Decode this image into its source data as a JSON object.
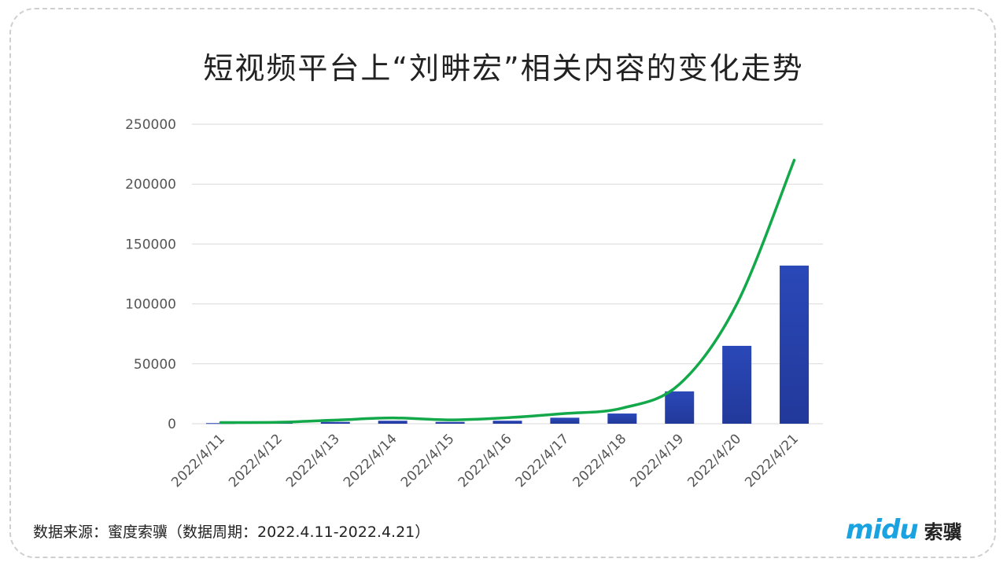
{
  "title": "短视频平台上“刘畊宏”相关内容的变化走势",
  "footer": {
    "source": "数据来源：蜜度索骥（数据周期：2022.4.11-2022.4.21）",
    "logo_mark": "midu",
    "logo_cn": "索骥"
  },
  "colors": {
    "bar": "#22399a",
    "line": "#13a84a",
    "grid": "#d9d9d9"
  },
  "chart_data": {
    "type": "bar",
    "title": "短视频平台上“刘畊宏”相关内容的变化走势",
    "categories": [
      "2022/4/11",
      "2022/4/12",
      "2022/4/13",
      "2022/4/14",
      "2022/4/15",
      "2022/4/16",
      "2022/4/17",
      "2022/4/18",
      "2022/4/19",
      "2022/4/20",
      "2022/4/21"
    ],
    "series": [
      {
        "type": "bar",
        "values": [
          500,
          800,
          1500,
          2500,
          1500,
          2500,
          5000,
          8500,
          27000,
          65000,
          132000
        ]
      },
      {
        "type": "line",
        "smooth": true,
        "values": [
          1000,
          1200,
          3000,
          4800,
          3200,
          5000,
          8500,
          13000,
          33000,
          100000,
          220000
        ]
      }
    ],
    "ylim": [
      0,
      250000
    ],
    "yticks": [
      0,
      50000,
      100000,
      150000,
      200000,
      250000
    ],
    "grid": true,
    "legend": "none"
  }
}
